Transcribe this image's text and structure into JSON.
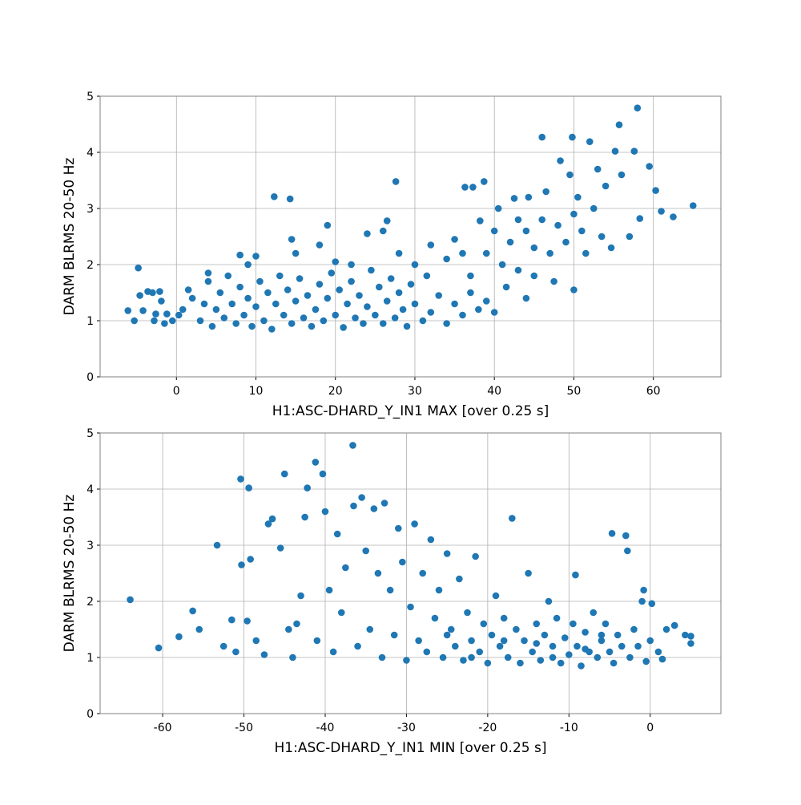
{
  "chart_data": [
    {
      "type": "scatter",
      "xlabel": "H1:ASC-DHARD_Y_IN1 MAX [over 0.25 s]",
      "ylabel": "DARM BLRMS 20-50 Hz",
      "color": "#1f77b4",
      "grid": true,
      "xlim": [
        -9.6,
        68.5
      ],
      "ylim": [
        0,
        5
      ],
      "xticks": [
        0,
        10,
        20,
        30,
        40,
        50,
        60
      ],
      "yticks": [
        0,
        1,
        2,
        3,
        4,
        5
      ],
      "x": [
        -6.1,
        -5.3,
        -4.8,
        -4.6,
        -4.2,
        -3.6,
        -3.0,
        -2.6,
        -2.1,
        -1.9,
        -1.5,
        -1.2,
        -2.8,
        -0.5,
        0.3,
        0.8,
        1.5,
        2.0,
        3,
        3.5,
        4,
        4.5,
        5,
        5.5,
        6,
        6.5,
        7,
        7.5,
        8,
        8.5,
        9,
        9.5,
        10,
        10.5,
        11,
        11.5,
        12,
        12.5,
        13,
        13.5,
        14,
        14.5,
        15,
        15.5,
        16,
        16.5,
        17,
        17.5,
        18,
        18.5,
        19,
        19.5,
        20,
        20.5,
        21,
        21.5,
        22,
        22.5,
        23,
        23.5,
        24,
        24.5,
        25,
        25.5,
        26,
        26.5,
        27,
        27.5,
        28,
        28.5,
        29,
        29.5,
        30,
        31,
        31.5,
        32,
        33,
        34,
        35,
        36,
        37,
        38,
        39,
        40,
        4,
        9,
        10,
        8,
        12.3,
        14.3,
        14.5,
        15,
        18,
        19,
        20,
        22,
        24,
        26,
        26.5,
        27.6,
        28,
        30,
        32,
        34,
        35,
        36,
        37,
        36.3,
        37.3,
        38.2,
        38.7,
        39,
        40,
        40.5,
        41,
        41.5,
        42,
        42.5,
        43,
        44,
        44.3,
        45,
        46,
        46,
        46.5,
        47,
        47.5,
        48,
        48.3,
        49,
        49.8,
        49.5,
        50,
        50,
        50.5,
        51,
        51.5,
        52,
        52.5,
        53,
        53.5,
        54,
        54.7,
        55.2,
        55.7,
        56,
        57,
        57.6,
        58,
        58.3,
        59.5,
        60.3,
        61,
        62.5,
        65,
        44,
        45,
        43
      ],
      "values": [
        1.18,
        1.0,
        1.94,
        1.45,
        1.18,
        1.52,
        1.5,
        1.12,
        1.52,
        1.35,
        0.95,
        1.12,
        1.0,
        1.0,
        1.1,
        1.2,
        1.55,
        1.4,
        1.0,
        1.3,
        1.7,
        0.9,
        1.2,
        1.5,
        1.05,
        1.8,
        1.3,
        0.95,
        1.6,
        1.1,
        1.4,
        0.9,
        1.25,
        1.7,
        1.0,
        1.5,
        0.85,
        1.3,
        1.8,
        1.1,
        1.55,
        0.95,
        1.35,
        1.75,
        1.05,
        1.45,
        0.9,
        1.2,
        1.65,
        1.0,
        1.4,
        1.85,
        1.1,
        1.55,
        0.88,
        1.3,
        1.7,
        1.05,
        1.45,
        0.95,
        1.25,
        1.9,
        1.1,
        1.6,
        0.95,
        1.35,
        1.75,
        1.05,
        1.5,
        1.2,
        0.9,
        1.65,
        1.3,
        1.0,
        1.8,
        1.15,
        1.45,
        0.95,
        1.3,
        1.1,
        1.5,
        1.2,
        1.35,
        1.15,
        1.85,
        2.0,
        2.15,
        2.17,
        3.21,
        3.17,
        2.45,
        2.2,
        2.35,
        2.7,
        2.05,
        2.0,
        2.55,
        2.6,
        2.78,
        3.48,
        2.2,
        2.0,
        2.35,
        2.1,
        2.45,
        2.2,
        1.8,
        3.38,
        3.38,
        2.78,
        3.48,
        2.2,
        2.6,
        3.0,
        2.0,
        1.6,
        2.4,
        3.18,
        1.9,
        2.6,
        3.2,
        2.3,
        4.27,
        2.8,
        3.3,
        2.2,
        1.7,
        2.7,
        3.85,
        2.4,
        4.27,
        3.6,
        1.55,
        2.9,
        3.2,
        2.6,
        2.2,
        4.19,
        3.0,
        3.7,
        2.5,
        3.4,
        2.3,
        4.02,
        4.49,
        3.6,
        2.5,
        4.02,
        4.79,
        2.82,
        3.75,
        3.32,
        2.95,
        2.85,
        3.05,
        1.4,
        1.8,
        2.8
      ]
    },
    {
      "type": "scatter",
      "xlabel": "H1:ASC-DHARD_Y_IN1 MIN [over 0.25 s]",
      "ylabel": "DARM BLRMS 20-50 Hz",
      "color": "#1f77b4",
      "grid": true,
      "xlim": [
        -67.7,
        8.7
      ],
      "ylim": [
        0,
        5
      ],
      "xticks": [
        -60,
        -50,
        -40,
        -30,
        -20,
        -10,
        0
      ],
      "yticks": [
        0,
        1,
        2,
        3,
        4,
        5
      ],
      "x": [
        -64,
        -60.5,
        -58,
        -56.3,
        -55.5,
        -53.3,
        -52.5,
        -51.5,
        -51,
        -50.3,
        -49.6,
        -49.2,
        -50.4,
        -49.4,
        -48.5,
        -47.5,
        -47,
        -46.5,
        -45.5,
        -45,
        -44.5,
        -44,
        -43.5,
        -43,
        -42.2,
        -42.5,
        -41.2,
        -40.3,
        -41,
        -40,
        -39.5,
        -39,
        -38.5,
        -38,
        -37.5,
        -36.6,
        -36.5,
        -36,
        -35.5,
        -35,
        -34.5,
        -34,
        -33.5,
        -33,
        -32.7,
        -32,
        -31.5,
        -31,
        -30.5,
        -30,
        -29.5,
        -29,
        -28.5,
        -28,
        -27.5,
        -27,
        -26.5,
        -26,
        -25.5,
        -25,
        -24.5,
        -24,
        -23.5,
        -23,
        -22.5,
        -22,
        -21.5,
        -21,
        -20.5,
        -20,
        -19.5,
        -19,
        -18.5,
        -18,
        -17.5,
        -17,
        -16.5,
        -16,
        -15.5,
        -15,
        -14.5,
        -14,
        -13.5,
        -13,
        -12.5,
        -12,
        -11.5,
        -11,
        -10.5,
        -10,
        -9.5,
        -9.2,
        -9,
        -8.5,
        -8,
        -7.5,
        -7,
        -6.5,
        -6,
        -5.5,
        -5,
        -4.7,
        -4.5,
        -4,
        -3.5,
        -3,
        -2.8,
        -2.5,
        -2,
        -1.5,
        -1,
        -0.8,
        -0.5,
        0,
        0.2,
        1,
        1.5,
        2,
        3,
        4.3,
        5,
        5,
        -25,
        -22,
        -18,
        -14,
        -12,
        -8,
        -6
      ],
      "values": [
        2.03,
        1.17,
        1.37,
        1.83,
        1.5,
        3.0,
        1.2,
        1.67,
        1.1,
        2.65,
        1.65,
        2.75,
        4.18,
        4.02,
        1.3,
        1.05,
        3.38,
        3.47,
        2.95,
        4.27,
        1.5,
        1.0,
        1.6,
        2.1,
        4.02,
        3.5,
        4.48,
        4.27,
        1.3,
        3.6,
        2.2,
        1.1,
        3.2,
        1.8,
        2.6,
        4.78,
        3.7,
        1.2,
        3.85,
        2.9,
        1.5,
        3.65,
        2.5,
        1.0,
        3.75,
        2.2,
        1.4,
        3.3,
        2.7,
        0.95,
        1.9,
        3.38,
        1.3,
        2.5,
        1.1,
        3.1,
        1.7,
        2.2,
        1.0,
        2.85,
        1.5,
        1.2,
        2.4,
        0.95,
        1.8,
        1.3,
        2.8,
        1.1,
        1.6,
        0.9,
        1.4,
        2.1,
        1.2,
        1.7,
        1.0,
        3.48,
        1.5,
        0.9,
        1.3,
        2.5,
        1.1,
        1.6,
        0.95,
        1.4,
        2.0,
        1.2,
        1.7,
        0.9,
        1.35,
        1.05,
        1.6,
        2.47,
        1.2,
        0.85,
        1.45,
        1.1,
        1.8,
        1.0,
        1.3,
        1.6,
        1.1,
        3.21,
        0.9,
        1.4,
        1.2,
        3.17,
        2.9,
        1.0,
        1.5,
        1.2,
        2.0,
        2.2,
        0.93,
        1.3,
        1.96,
        1.1,
        0.97,
        1.5,
        1.57,
        1.4,
        1.38,
        1.25,
        1.4,
        1.0,
        1.3,
        1.25,
        1.0,
        1.15,
        1.4
      ]
    }
  ]
}
